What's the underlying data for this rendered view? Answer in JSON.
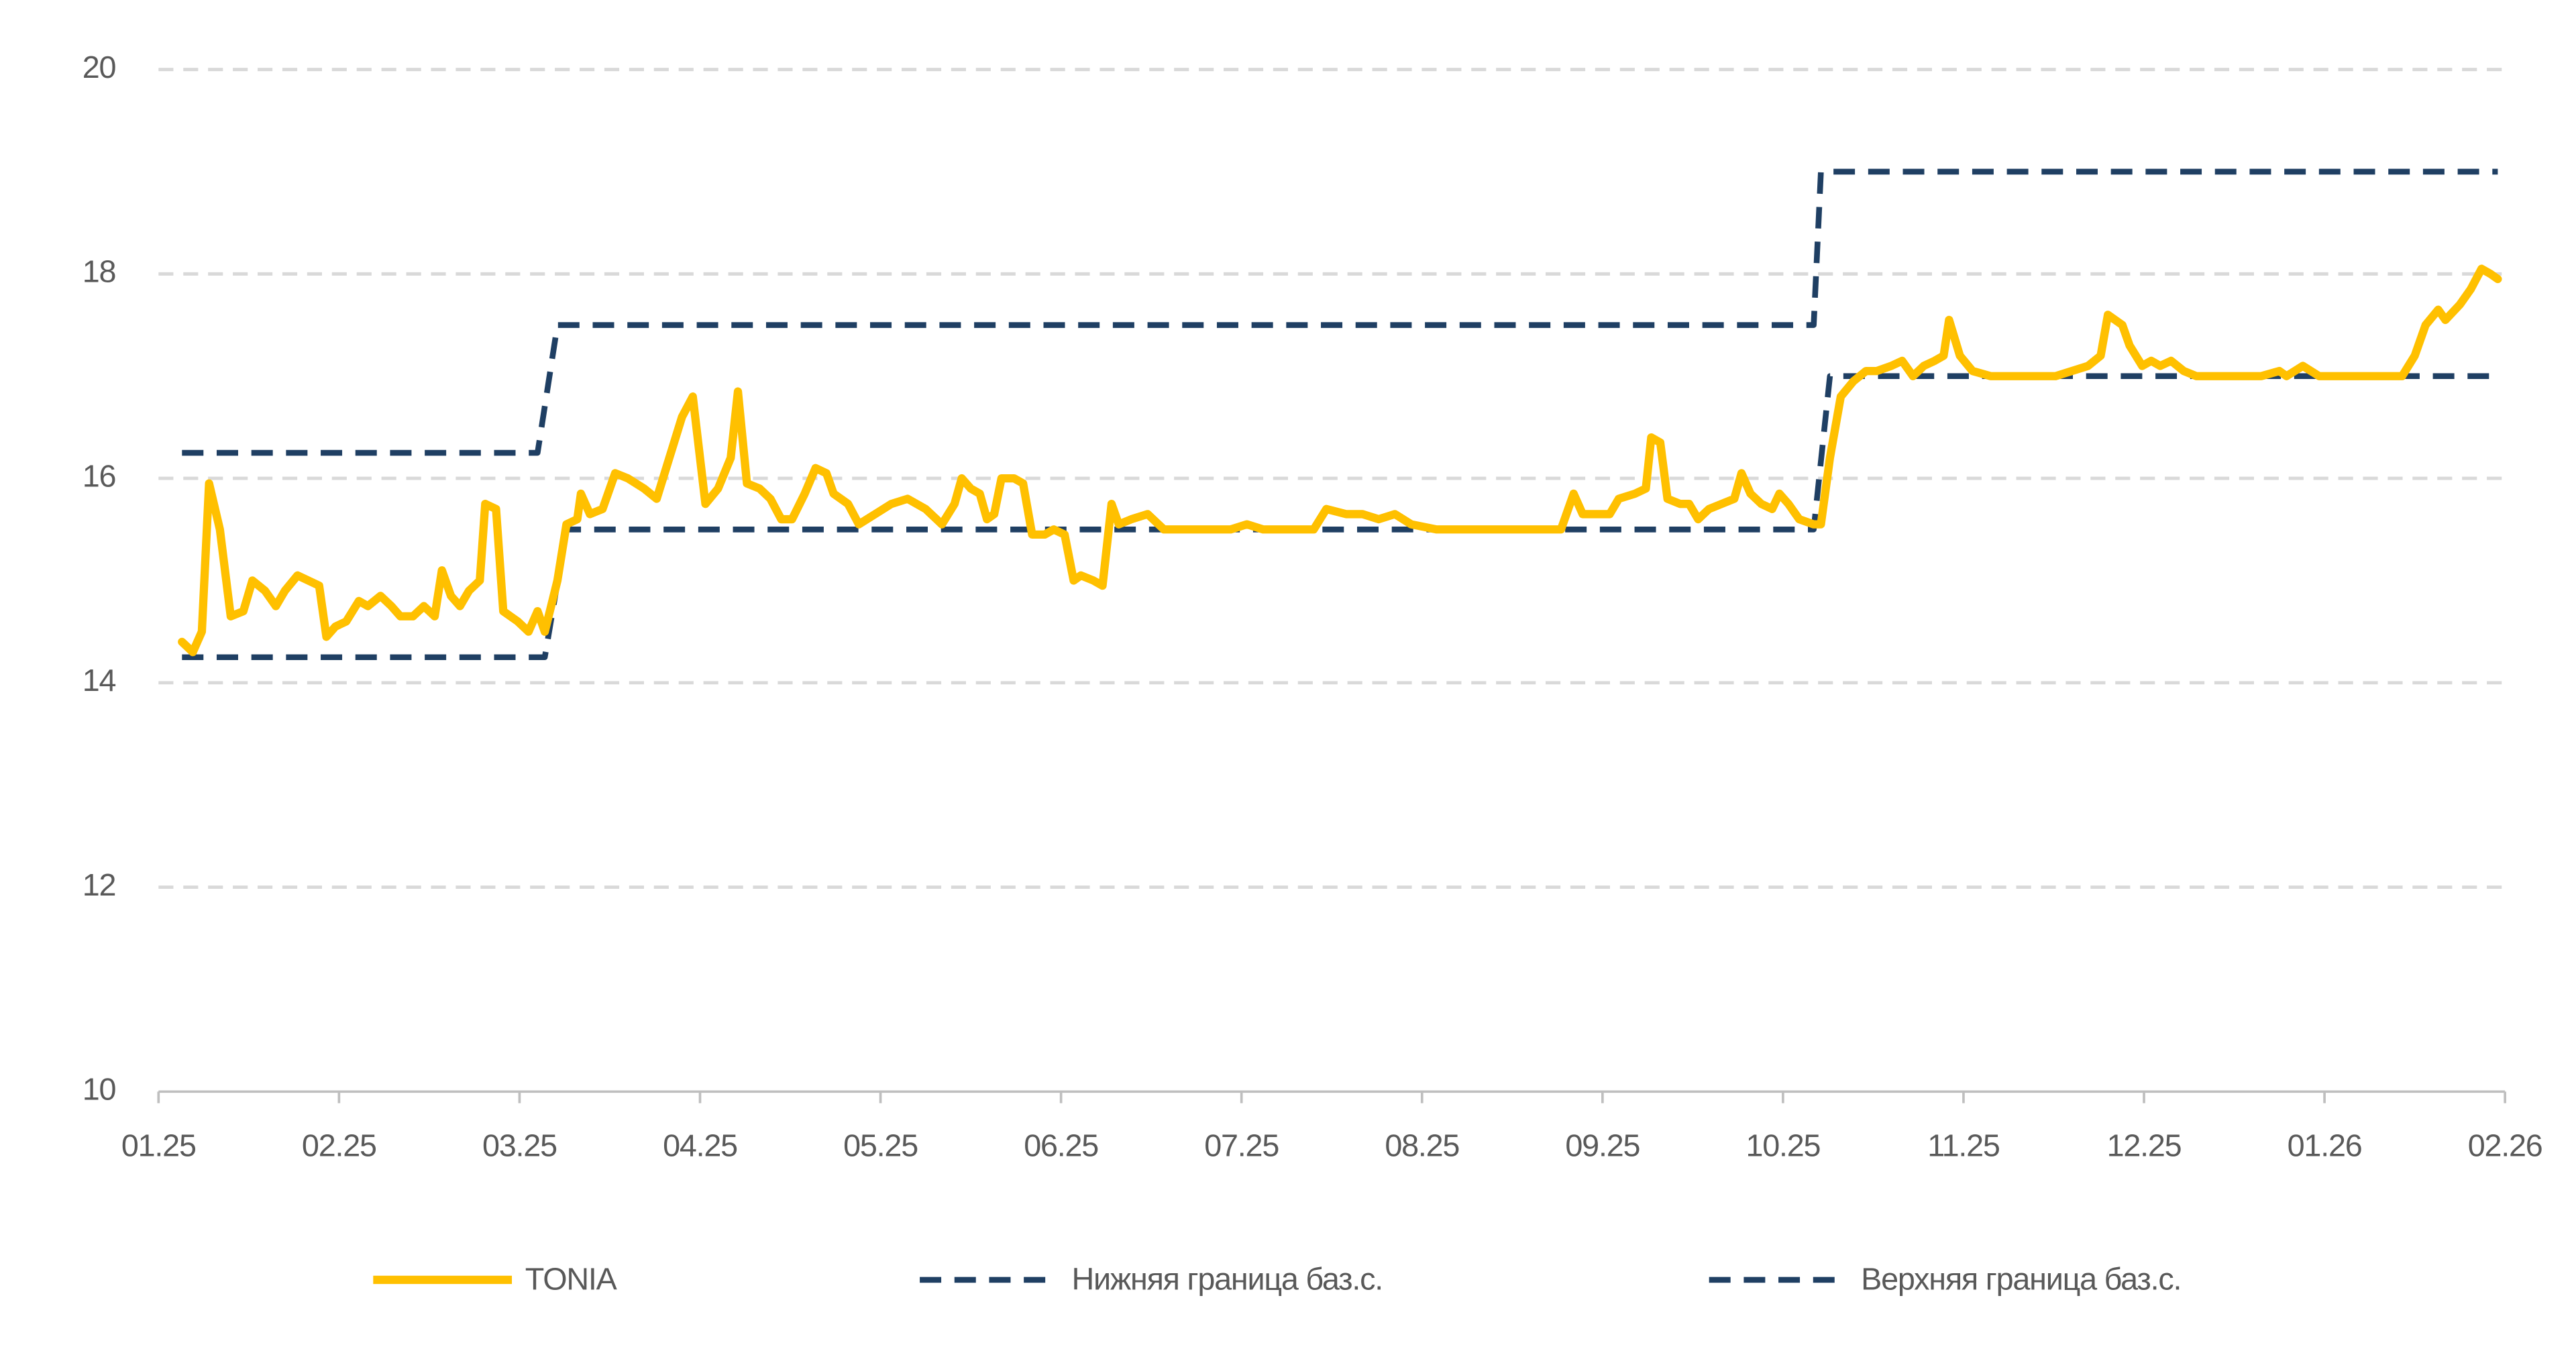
{
  "chart_data": {
    "type": "line",
    "xlim": [
      0,
      13
    ],
    "xticks": [
      {
        "value": 0,
        "label": "01.25"
      },
      {
        "value": 1,
        "label": "02.25"
      },
      {
        "value": 2,
        "label": "03.25"
      },
      {
        "value": 3,
        "label": "04.25"
      },
      {
        "value": 4,
        "label": "05.25"
      },
      {
        "value": 5,
        "label": "06.25"
      },
      {
        "value": 6,
        "label": "07.25"
      },
      {
        "value": 7,
        "label": "08.25"
      },
      {
        "value": 8,
        "label": "09.25"
      },
      {
        "value": 9,
        "label": "10.25"
      },
      {
        "value": 10,
        "label": "11.25"
      },
      {
        "value": 11,
        "label": "12.25"
      },
      {
        "value": 12,
        "label": "01.26"
      },
      {
        "value": 13,
        "label": "02.26"
      }
    ],
    "ylim": [
      10,
      20
    ],
    "yticks": [
      10,
      12,
      14,
      16,
      18,
      20
    ],
    "grid": true,
    "legend": "bottom",
    "series": [
      {
        "name": "TONIA",
        "color": "#ffc000",
        "dashed": false,
        "x": [
          0.13,
          0.19,
          0.24,
          0.28,
          0.34,
          0.4,
          0.47,
          0.52,
          0.59,
          0.65,
          0.7,
          0.77,
          0.83,
          0.89,
          0.93,
          0.98,
          1.04,
          1.11,
          1.16,
          1.23,
          1.29,
          1.34,
          1.41,
          1.47,
          1.53,
          1.57,
          1.62,
          1.67,
          1.72,
          1.78,
          1.81,
          1.87,
          1.91,
          1.99,
          2.05,
          2.1,
          2.14,
          2.21,
          2.26,
          2.32,
          2.34,
          2.39,
          2.46,
          2.53,
          2.6,
          2.69,
          2.76,
          2.83,
          2.9,
          2.96,
          3.03,
          3.1,
          3.17,
          3.21,
          3.26,
          3.33,
          3.39,
          3.45,
          3.51,
          3.58,
          3.64,
          3.7,
          3.74,
          3.82,
          3.88,
          3.97,
          4.06,
          4.15,
          4.25,
          4.34,
          4.41,
          4.45,
          4.5,
          4.55,
          4.59,
          4.63,
          4.67,
          4.74,
          4.79,
          4.84,
          4.91,
          4.96,
          5.02,
          5.07,
          5.11,
          5.18,
          5.23,
          5.28,
          5.32,
          5.39,
          5.48,
          5.57,
          5.66,
          5.75,
          5.84,
          5.94,
          6.03,
          6.12,
          6.21,
          6.3,
          6.4,
          6.47,
          6.58,
          6.67,
          6.76,
          6.85,
          6.94,
          7.08,
          7.22,
          7.36,
          7.49,
          7.63,
          7.77,
          7.84,
          7.89,
          7.95,
          8.04,
          8.09,
          8.18,
          8.24,
          8.27,
          8.32,
          8.36,
          8.43,
          8.48,
          8.53,
          8.59,
          8.66,
          8.73,
          8.77,
          8.82,
          8.88,
          8.94,
          8.98,
          9.03,
          9.09,
          9.17,
          9.21,
          9.26,
          9.32,
          9.39,
          9.46,
          9.52,
          9.6,
          9.66,
          9.72,
          9.78,
          9.84,
          9.89,
          9.92,
          9.98,
          10.05,
          10.15,
          10.24,
          10.33,
          10.42,
          10.51,
          10.6,
          10.69,
          10.76,
          10.8,
          10.88,
          10.92,
          10.99,
          11.04,
          11.09,
          11.15,
          11.22,
          11.29,
          11.38,
          11.47,
          11.56,
          11.65,
          11.75,
          11.79,
          11.88,
          11.97,
          12.06,
          12.16,
          12.25,
          12.34,
          12.43,
          12.5,
          12.56,
          12.63,
          12.67,
          12.75,
          12.81,
          12.87,
          12.92,
          12.96
        ],
        "values": [
          14.4,
          14.3,
          14.5,
          15.95,
          15.5,
          14.65,
          14.7,
          15.0,
          14.9,
          14.75,
          14.9,
          15.05,
          15.0,
          14.95,
          14.45,
          14.55,
          14.6,
          14.8,
          14.75,
          14.85,
          14.75,
          14.65,
          14.65,
          14.75,
          14.65,
          15.1,
          14.85,
          14.75,
          14.9,
          15.0,
          15.75,
          15.7,
          14.7,
          14.6,
          14.5,
          14.7,
          14.5,
          15.0,
          15.55,
          15.6,
          15.85,
          15.65,
          15.7,
          16.05,
          16.0,
          15.9,
          15.8,
          16.2,
          16.6,
          16.8,
          15.75,
          15.9,
          16.2,
          16.85,
          15.95,
          15.9,
          15.8,
          15.6,
          15.6,
          15.85,
          16.1,
          16.05,
          15.85,
          15.75,
          15.55,
          15.65,
          15.75,
          15.8,
          15.7,
          15.55,
          15.75,
          16.0,
          15.9,
          15.85,
          15.6,
          15.65,
          16.0,
          16.0,
          15.95,
          15.45,
          15.45,
          15.5,
          15.45,
          15.0,
          15.05,
          15.0,
          14.95,
          15.75,
          15.55,
          15.6,
          15.65,
          15.5,
          15.5,
          15.5,
          15.5,
          15.5,
          15.55,
          15.5,
          15.5,
          15.5,
          15.5,
          15.7,
          15.65,
          15.65,
          15.6,
          15.65,
          15.55,
          15.5,
          15.5,
          15.5,
          15.5,
          15.5,
          15.5,
          15.85,
          15.65,
          15.65,
          15.65,
          15.8,
          15.85,
          15.9,
          16.4,
          16.35,
          15.8,
          15.75,
          15.75,
          15.6,
          15.7,
          15.75,
          15.8,
          16.05,
          15.85,
          15.75,
          15.7,
          15.85,
          15.75,
          15.6,
          15.55,
          15.55,
          16.2,
          16.8,
          16.95,
          17.05,
          17.05,
          17.1,
          17.15,
          17.0,
          17.1,
          17.15,
          17.2,
          17.55,
          17.2,
          17.05,
          17.0,
          17.0,
          17.0,
          17.0,
          17.0,
          17.05,
          17.1,
          17.2,
          17.6,
          17.5,
          17.3,
          17.1,
          17.15,
          17.1,
          17.15,
          17.05,
          17.0,
          17.0,
          17.0,
          17.0,
          17.0,
          17.05,
          17.0,
          17.1,
          17.0,
          17.0,
          17.0,
          17.0,
          17.0,
          17.0,
          17.2,
          17.5,
          17.65,
          17.55,
          17.7,
          17.85,
          18.05,
          18.0,
          17.95
        ]
      },
      {
        "name": "Нижняя граница баз.с.",
        "color": "#1f3f63",
        "dashed": true,
        "x": [
          0.13,
          2.14,
          2.26,
          9.17,
          9.26,
          12.96
        ],
        "values": [
          14.25,
          14.25,
          15.5,
          15.5,
          17,
          17
        ]
      },
      {
        "name": "Верхняя граница баз.с.",
        "color": "#1f3f63",
        "dashed": true,
        "x": [
          0.13,
          2.1,
          2.21,
          9.17,
          9.21,
          12.96
        ],
        "values": [
          16.25,
          16.25,
          17.5,
          17.5,
          19,
          19
        ]
      }
    ]
  }
}
